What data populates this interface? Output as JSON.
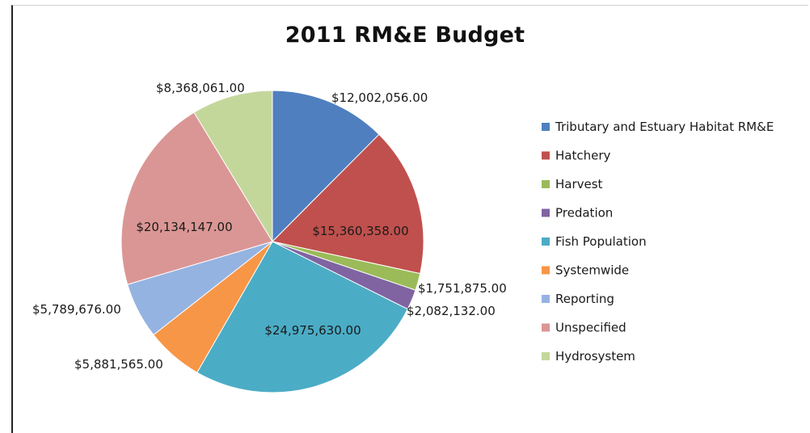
{
  "chart_data": {
    "type": "pie",
    "title": "2011 RM&E  Budget",
    "categories": [
      "Tributary and Estuary Habitat RM&E",
      "Hatchery",
      "Harvest",
      "Predation",
      "Fish Population",
      "Systemwide",
      "Reporting",
      "Unspecified",
      "Hydrosystem"
    ],
    "values": [
      12002056,
      15360358,
      1751875,
      2082132,
      24975630,
      5881565,
      5789676,
      20134147,
      8368061
    ],
    "data_labels": [
      "$12,002,056.00",
      "$15,360,358.00",
      "$1,751,875.00",
      "$2,082,132.00",
      "$24,975,630.00",
      "$5,881,565.00",
      "$5,789,676.00",
      "$20,134,147.00",
      "$8,368,061.00"
    ],
    "colors": [
      "#4f7fbf",
      "#c0504d",
      "#9bbb59",
      "#8064a2",
      "#4bacc6",
      "#f79646",
      "#95b3e1",
      "#da9694",
      "#c4d79b"
    ],
    "legend_position": "right"
  }
}
